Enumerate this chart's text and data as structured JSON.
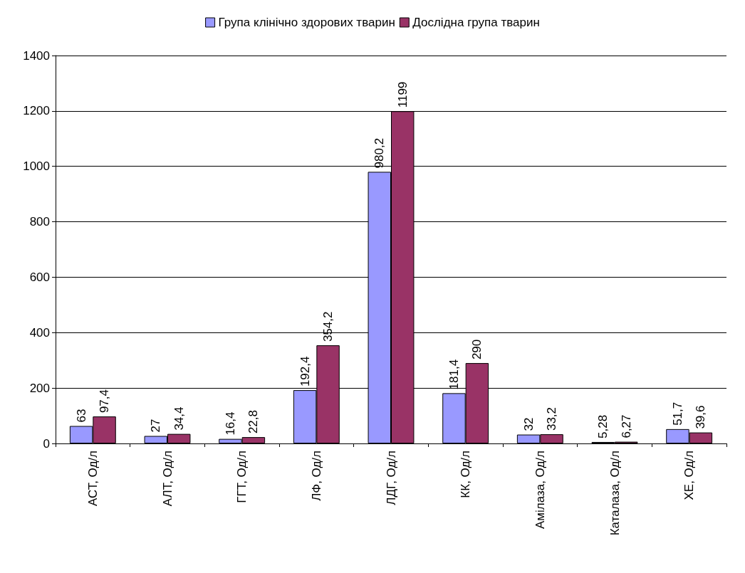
{
  "chart_data": {
    "type": "bar",
    "categories": [
      "АСТ, Од/л",
      "АЛТ, Од/л",
      "ГГТ, Од/л",
      "ЛФ, Од/л",
      "ЛДГ, Од/л",
      "КК, Од/л",
      "Амілаза, Од/л",
      "Каталаза, Од/л",
      "ХЕ, Од/л"
    ],
    "series": [
      {
        "name": "Група клінічно здорових тварин",
        "color": "#9999ff",
        "values": [
          63,
          27,
          16.4,
          192.4,
          980.2,
          181.4,
          32,
          5.28,
          51.7
        ],
        "value_labels": [
          "63",
          "27",
          "16,4",
          "192,4",
          "980,2",
          "181,4",
          "32",
          "5,28",
          "51,7"
        ]
      },
      {
        "name": "Дослідна група тварин",
        "color": "#993366",
        "values": [
          97.4,
          34.4,
          22.8,
          354.2,
          1199,
          290,
          33.2,
          6.27,
          39.6
        ],
        "value_labels": [
          "97,4",
          "34,4",
          "22,8",
          "354,2",
          "1199",
          "290",
          "33,2",
          "6,27",
          "39,6"
        ]
      }
    ],
    "ylim": [
      0,
      1400
    ],
    "yticks": [
      0,
      200,
      400,
      600,
      800,
      1000,
      1200,
      1400
    ],
    "grid": "y",
    "legend": "top"
  }
}
